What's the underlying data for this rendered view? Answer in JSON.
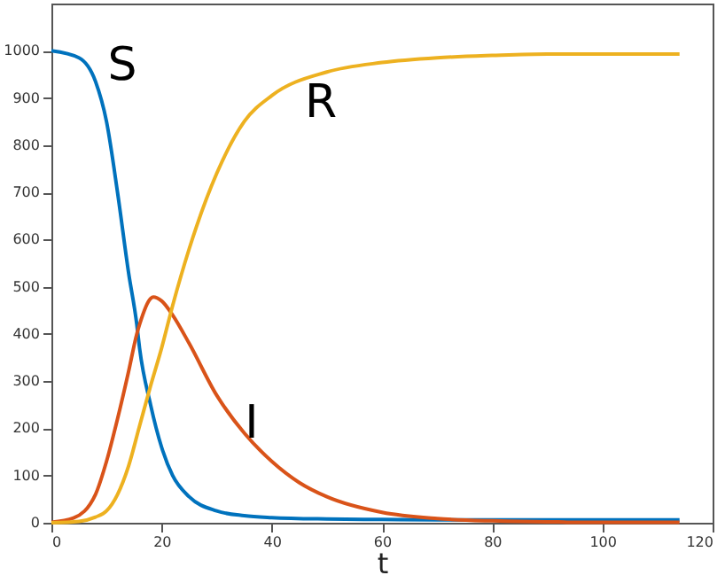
{
  "chart_data": {
    "type": "line",
    "xlabel": "t",
    "xlim": [
      0,
      120
    ],
    "xticks": [
      0,
      20,
      40,
      60,
      80,
      100,
      120
    ],
    "ylim": [
      0,
      1100
    ],
    "yticks": [
      0,
      100,
      200,
      300,
      400,
      500,
      600,
      700,
      800,
      900,
      1000
    ],
    "line_style": "solid",
    "series": [
      {
        "name": "S",
        "color": "#0072bd",
        "x": [
          0,
          5,
          8,
          10,
          12,
          14,
          15.5,
          16,
          18,
          20,
          22,
          25,
          30,
          35,
          40,
          50,
          60,
          70,
          80,
          90,
          92,
          94,
          96,
          98,
          100,
          103,
          106,
          110,
          114
        ],
        "values": [
          1000,
          985,
          935,
          850,
          700,
          530,
          420,
          370,
          250,
          160,
          100,
          55,
          25,
          15,
          11,
          8,
          7,
          6,
          6,
          6,
          6,
          6,
          6,
          6,
          6,
          6,
          6,
          6,
          6
        ]
      },
      {
        "name": "I",
        "color": "#d95319",
        "x": [
          0,
          4,
          8,
          10,
          12,
          14,
          15.5,
          16,
          18,
          18.5,
          20,
          22,
          25,
          30,
          35,
          40,
          45,
          50,
          60,
          70,
          80,
          90,
          92,
          94,
          96,
          98,
          100,
          103,
          106,
          110,
          114
        ],
        "values": [
          1,
          10,
          60,
          130,
          220,
          320,
          400,
          420,
          475,
          478,
          470,
          440,
          380,
          270,
          190,
          130,
          85,
          55,
          22,
          9,
          4,
          2,
          2,
          1,
          1,
          1,
          1,
          1,
          1,
          1,
          1
        ]
      },
      {
        "name": "R",
        "color": "#edb120",
        "x": [
          0,
          5,
          8,
          10,
          12,
          14,
          16,
          18,
          20,
          22,
          25,
          30,
          35,
          40,
          50,
          60,
          70,
          80,
          90,
          92,
          94,
          96,
          98,
          100,
          103,
          106,
          110,
          114
        ],
        "values": [
          0,
          3,
          12,
          25,
          60,
          120,
          205,
          290,
          370,
          460,
          580,
          740,
          850,
          905,
          955,
          975,
          985,
          990,
          993,
          993,
          993,
          993,
          993,
          993,
          993,
          993,
          993,
          993
        ]
      }
    ]
  }
}
